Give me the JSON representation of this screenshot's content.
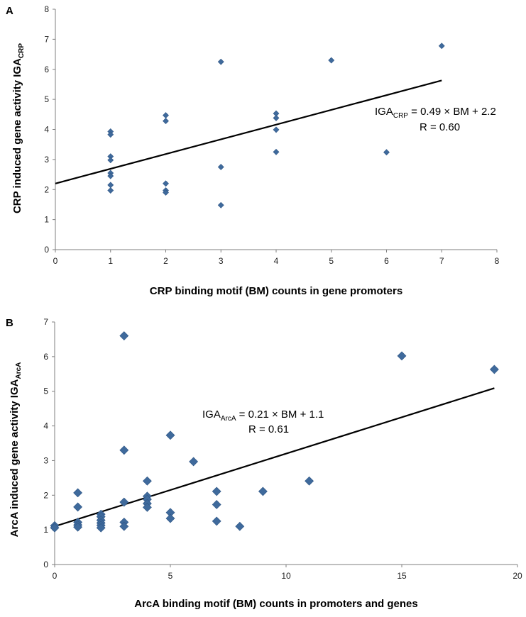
{
  "chart_data": [
    {
      "type": "scatter",
      "panel_label": "A",
      "ylabel_main": "CRP induced gene activity IGA",
      "ylabel_sub": "CRP",
      "xlabel": "CRP binding motif (BM) counts in gene promoters",
      "xlim": [
        0,
        8
      ],
      "ylim": [
        0,
        8
      ],
      "xticks": [
        0,
        1,
        2,
        3,
        4,
        5,
        6,
        7,
        8
      ],
      "yticks": [
        0,
        1,
        2,
        3,
        4,
        5,
        6,
        7,
        8
      ],
      "grid": false,
      "series": [
        {
          "name": "genes",
          "color": "#3F6A9C",
          "points": [
            [
              1,
              3.93
            ],
            [
              1,
              3.83
            ],
            [
              1,
              3.1
            ],
            [
              1,
              2.98
            ],
            [
              1,
              2.55
            ],
            [
              1,
              2.45
            ],
            [
              1,
              2.15
            ],
            [
              1,
              1.97
            ],
            [
              2,
              4.47
            ],
            [
              2,
              4.28
            ],
            [
              2,
              2.2
            ],
            [
              2,
              1.97
            ],
            [
              2,
              1.9
            ],
            [
              3,
              6.25
            ],
            [
              3,
              2.75
            ],
            [
              3,
              1.48
            ],
            [
              4,
              4.53
            ],
            [
              4,
              4.38
            ],
            [
              4,
              3.99
            ],
            [
              4,
              3.25
            ],
            [
              5,
              6.3
            ],
            [
              6,
              3.24
            ],
            [
              7,
              6.78
            ]
          ]
        }
      ],
      "fit": {
        "slope": 0.49,
        "intercept": 2.2,
        "x_range": [
          0,
          7
        ]
      },
      "annotation": {
        "label_main": "IGA",
        "label_sub": "CRP",
        "equation_rest": " = 0.49 × BM + 2.2",
        "r_text": "R = 0.60"
      }
    },
    {
      "type": "scatter",
      "panel_label": "B",
      "ylabel_main": "ArcA induced gene activity IGA",
      "ylabel_sub": "ArcA",
      "xlabel": "ArcA binding motif (BM) counts in promoters and genes",
      "xlim": [
        0,
        20
      ],
      "ylim": [
        0,
        7
      ],
      "xticks": [
        0,
        5,
        10,
        15,
        20
      ],
      "yticks": [
        0,
        1,
        2,
        3,
        4,
        5,
        6,
        7
      ],
      "grid": false,
      "series": [
        {
          "name": "genes",
          "color": "#3F6A9C",
          "points": [
            [
              0,
              1.12
            ],
            [
              0,
              1.06
            ],
            [
              1,
              2.07
            ],
            [
              1,
              1.66
            ],
            [
              1,
              1.22
            ],
            [
              1,
              1.14
            ],
            [
              1,
              1.08
            ],
            [
              2,
              1.45
            ],
            [
              2,
              1.38
            ],
            [
              2,
              1.28
            ],
            [
              2,
              1.2
            ],
            [
              2,
              1.13
            ],
            [
              2,
              1.06
            ],
            [
              3,
              6.6
            ],
            [
              3,
              3.3
            ],
            [
              3,
              1.8
            ],
            [
              3,
              1.22
            ],
            [
              3,
              1.1
            ],
            [
              4,
              2.41
            ],
            [
              4,
              1.97
            ],
            [
              4,
              1.88
            ],
            [
              4,
              1.76
            ],
            [
              4,
              1.65
            ],
            [
              5,
              3.73
            ],
            [
              5,
              1.5
            ],
            [
              5,
              1.33
            ],
            [
              6,
              2.97
            ],
            [
              7,
              2.11
            ],
            [
              7,
              1.73
            ],
            [
              7,
              1.25
            ],
            [
              8,
              1.1
            ],
            [
              9,
              2.11
            ],
            [
              11,
              2.41
            ],
            [
              15,
              6.02
            ],
            [
              19,
              5.63
            ]
          ]
        }
      ],
      "fit": {
        "slope": 0.21,
        "intercept": 1.1,
        "x_range": [
          0,
          19
        ]
      },
      "annotation": {
        "label_main": "IGA",
        "label_sub": "ArcA",
        "equation_rest": " = 0.21 × BM + 1.1",
        "r_text": "R = 0.61"
      }
    }
  ]
}
